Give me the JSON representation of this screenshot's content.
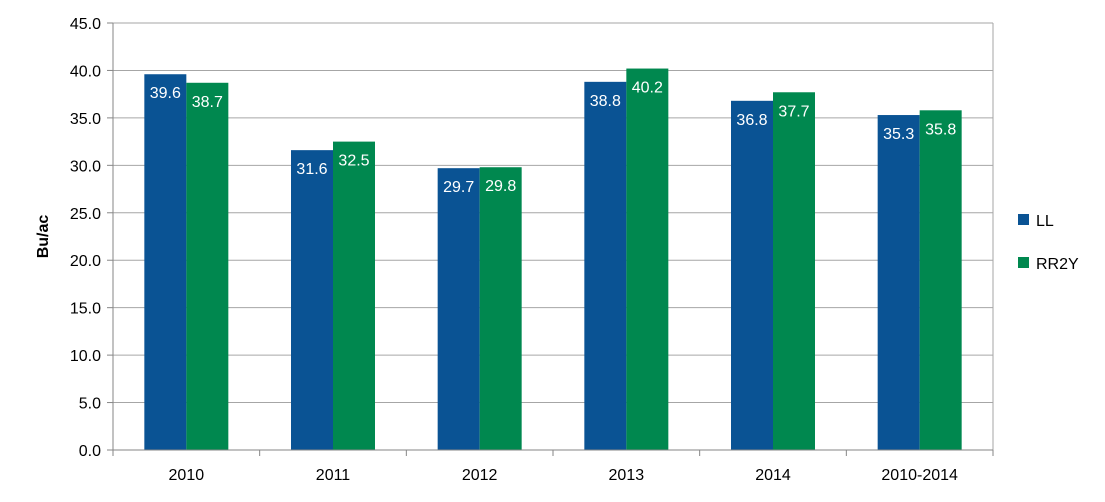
{
  "chart_data": {
    "type": "bar",
    "categories": [
      "2010",
      "2011",
      "2012",
      "2013",
      "2014",
      "2010-2014"
    ],
    "series": [
      {
        "name": "LL",
        "color": "#0A5394",
        "values": [
          39.6,
          31.6,
          29.7,
          38.8,
          36.8,
          35.3
        ]
      },
      {
        "name": "RR2Y",
        "color": "#00884F",
        "values": [
          38.7,
          32.5,
          29.8,
          40.2,
          37.7,
          35.8
        ]
      }
    ],
    "title": "",
    "xlabel": "",
    "ylabel": "Bu/ac",
    "ylim": [
      0,
      45
    ],
    "yticks": [
      "0.0",
      "5.0",
      "10.0",
      "15.0",
      "20.0",
      "25.0",
      "30.0",
      "35.0",
      "40.0",
      "45.0"
    ],
    "grid": true,
    "legend": "right",
    "data_labels": true
  }
}
